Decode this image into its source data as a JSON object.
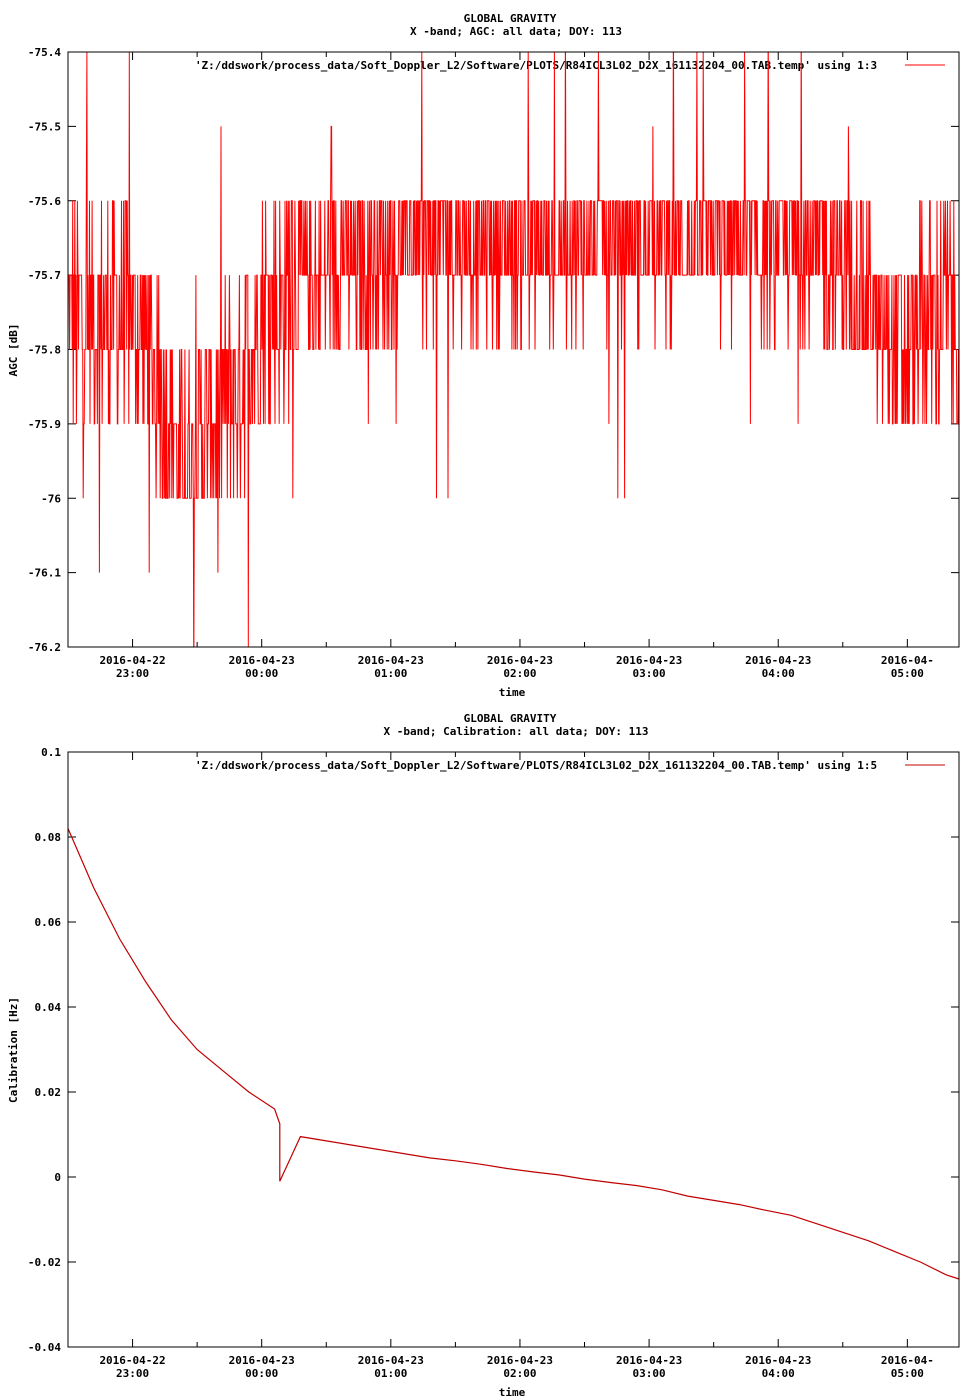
{
  "chart_data": [
    {
      "type": "line",
      "title": "GLOBAL GRAVITY",
      "subtitle": "X -band; AGC: all data; DOY: 113",
      "xlabel": "time",
      "ylabel": "AGC [dB]",
      "ylim": [
        -76.2,
        -75.4
      ],
      "yticks": [
        "-75.4",
        "-75.5",
        "-75.6",
        "-75.7",
        "-75.8",
        "-75.9",
        "-76",
        "-76.1",
        "-76.2"
      ],
      "xtick_labels": [
        [
          "2016-04-22",
          "23:00"
        ],
        [
          "2016-04-23",
          "00:00"
        ],
        [
          "2016-04-23",
          "01:00"
        ],
        [
          "2016-04-23",
          "02:00"
        ],
        [
          "2016-04-23",
          "03:00"
        ],
        [
          "2016-04-23",
          "04:00"
        ],
        [
          "2016-04-",
          "05:00"
        ]
      ],
      "xlim_hours": [
        -1.5,
        5.4
      ],
      "legend": "'Z:/ddswork/process_data/Soft_Doppler_L2/Software/PLOTS/R84ICL3L02_D2X_161132204_00.TAB.temp' using 1:3",
      "legend_position": "top-right",
      "color": "#ff0000",
      "grid": false,
      "series": [
        {
          "x_hours": [
            -1.5,
            -1.2,
            -1.0,
            -0.8,
            -0.6,
            -0.4,
            -0.2,
            0.0,
            0.2,
            0.4,
            0.6,
            0.8,
            1.0,
            1.2,
            1.4,
            1.6,
            1.8,
            2.0,
            2.2,
            2.4,
            2.6,
            2.8,
            3.0,
            3.2,
            3.4,
            3.6,
            3.8,
            4.0,
            4.2,
            4.4,
            4.6,
            4.8,
            5.0,
            5.2,
            5.4
          ],
          "values": [
            -75.75,
            -75.75,
            -75.75,
            -75.85,
            -75.95,
            -75.9,
            -75.85,
            -75.75,
            -75.72,
            -75.7,
            -75.68,
            -75.67,
            -75.67,
            -75.66,
            -75.66,
            -75.66,
            -75.66,
            -75.66,
            -75.66,
            -75.66,
            -75.66,
            -75.66,
            -75.66,
            -75.66,
            -75.66,
            -75.66,
            -75.66,
            -75.66,
            -75.66,
            -75.67,
            -75.7,
            -75.78,
            -75.8,
            -75.75,
            -75.75
          ],
          "spread": [
            0.15,
            0.15,
            0.15,
            0.15,
            0.12,
            0.12,
            0.15,
            0.15,
            0.15,
            0.12,
            0.12,
            0.12,
            0.12,
            0.1,
            0.1,
            0.1,
            0.1,
            0.1,
            0.1,
            0.1,
            0.1,
            0.1,
            0.1,
            0.1,
            0.1,
            0.1,
            0.1,
            0.1,
            0.1,
            0.12,
            0.12,
            0.12,
            0.15,
            0.15,
            0.15
          ]
        }
      ]
    },
    {
      "type": "line",
      "title": "GLOBAL GRAVITY",
      "subtitle": "X -band; Calibration: all data; DOY: 113",
      "xlabel": "time",
      "ylabel": "Calibration [Hz]",
      "ylim": [
        -0.04,
        0.1
      ],
      "yticks": [
        "0.1",
        "0.08",
        "0.06",
        "0.04",
        "0.02",
        "0",
        "-0.02",
        "-0.04"
      ],
      "xtick_labels": [
        [
          "2016-04-22",
          "23:00"
        ],
        [
          "2016-04-23",
          "00:00"
        ],
        [
          "2016-04-23",
          "01:00"
        ],
        [
          "2016-04-23",
          "02:00"
        ],
        [
          "2016-04-23",
          "03:00"
        ],
        [
          "2016-04-23",
          "04:00"
        ],
        [
          "2016-04-",
          "05:00"
        ]
      ],
      "xlim_hours": [
        -1.5,
        5.4
      ],
      "legend": "'Z:/ddswork/process_data/Soft_Doppler_L2/Software/PLOTS/R84ICL3L02_D2X_161132204_00.TAB.temp' using 1:5",
      "legend_position": "top-right",
      "color": "#c00000",
      "grid": false,
      "series": [
        {
          "x_hours": [
            -1.5,
            -1.3,
            -1.1,
            -0.9,
            -0.7,
            -0.5,
            -0.3,
            -0.1,
            0.1,
            0.14,
            0.14,
            0.14,
            0.3,
            0.5,
            0.7,
            0.9,
            1.1,
            1.3,
            1.5,
            1.7,
            1.9,
            2.1,
            2.3,
            2.5,
            2.7,
            2.9,
            3.1,
            3.3,
            3.5,
            3.7,
            3.9,
            4.1,
            4.3,
            4.5,
            4.7,
            4.9,
            5.1,
            5.3,
            5.4
          ],
          "values": [
            0.082,
            0.068,
            0.056,
            0.046,
            0.037,
            0.03,
            0.025,
            0.02,
            0.016,
            0.0125,
            0.0095,
            -0.001,
            0.0095,
            0.0085,
            0.0075,
            0.0065,
            0.0055,
            0.0045,
            0.0038,
            0.003,
            0.002,
            0.0012,
            0.0005,
            -0.0005,
            -0.0013,
            -0.002,
            -0.003,
            -0.0045,
            -0.0055,
            -0.0065,
            -0.0078,
            -0.009,
            -0.011,
            -0.013,
            -0.015,
            -0.0175,
            -0.02,
            -0.023,
            -0.024
          ]
        }
      ]
    }
  ]
}
